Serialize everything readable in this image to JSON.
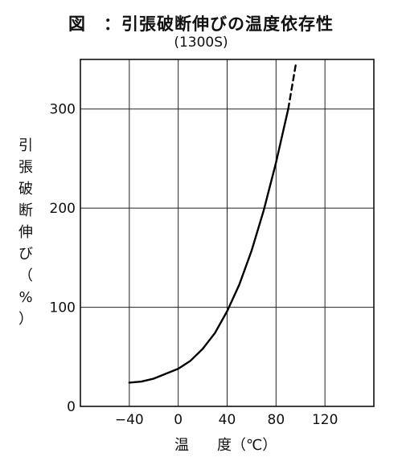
{
  "header": {
    "title": "図　：引張破断伸びの温度依存性",
    "subtitle": "(1300S)"
  },
  "chart_data": {
    "type": "line",
    "title": "図　：引張破断伸びの温度依存性",
    "subtitle": "(1300S)",
    "ylabel": "引張破断伸び（%）",
    "ylabel_chars": [
      "引",
      "張",
      "破",
      "断",
      "伸",
      "び",
      "（",
      "%",
      "）"
    ],
    "xlabel_parts": [
      "温",
      "度（℃）"
    ],
    "xlim": [
      -80,
      160
    ],
    "ylim": [
      0,
      350
    ],
    "x_ticks": [
      "−40",
      "0",
      "40",
      "80",
      "120"
    ],
    "x_tick_values": [
      -40,
      0,
      40,
      80,
      120
    ],
    "y_ticks": [
      "0",
      "100",
      "200",
      "300"
    ],
    "y_tick_values": [
      0,
      100,
      200,
      300
    ],
    "grid": true,
    "series": [
      {
        "x": [
          -40,
          -30,
          -20,
          -10,
          0,
          10,
          20,
          30,
          40,
          50,
          60,
          70,
          80,
          90
        ],
        "y": [
          24,
          25,
          28,
          33,
          38,
          46,
          58,
          74,
          96,
          123,
          157,
          198,
          246,
          300
        ],
        "style": "solid"
      },
      {
        "x": [
          90,
          96
        ],
        "y": [
          300,
          344
        ],
        "style": "dashed"
      }
    ]
  }
}
